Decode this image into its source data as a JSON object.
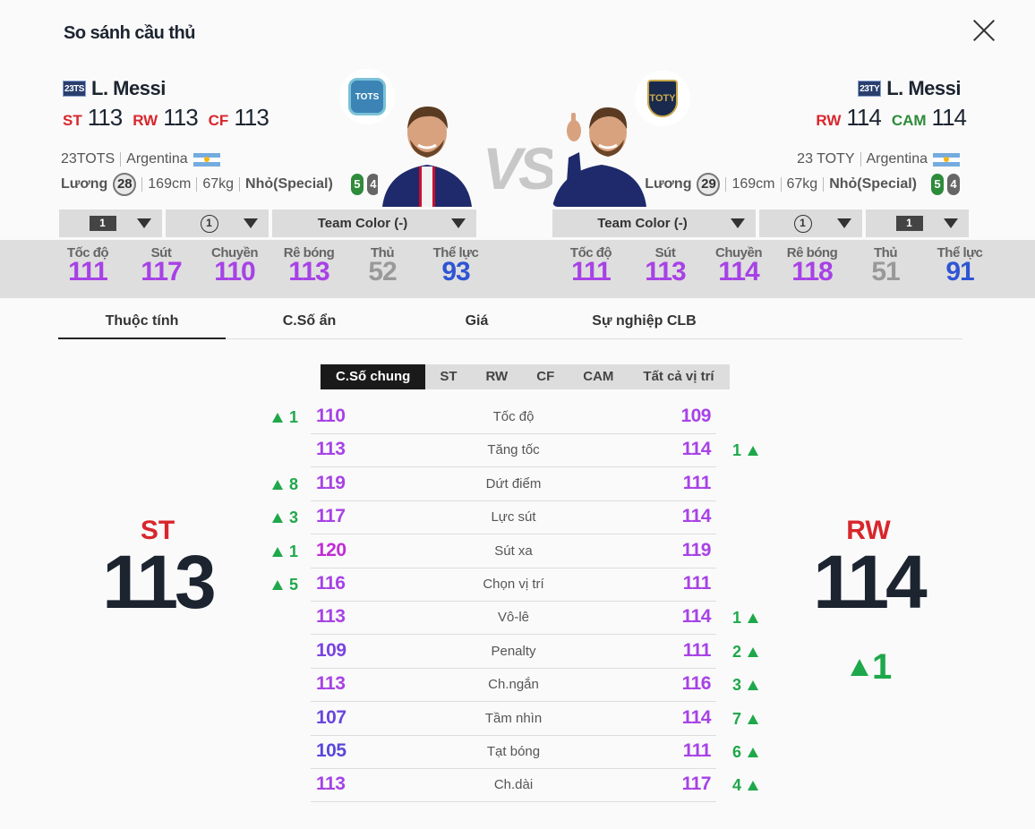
{
  "title": "So sánh cầu thủ",
  "vs_label": "VS",
  "left": {
    "season": "23TS",
    "name": "L. Messi",
    "positions": [
      {
        "pos": "ST",
        "value": "113",
        "color": "#d8262c"
      },
      {
        "pos": "RW",
        "value": "113",
        "color": "#d8262c"
      },
      {
        "pos": "CF",
        "value": "113",
        "color": "#d8262c"
      }
    ],
    "season_full": "23TOTS",
    "country": "Argentina",
    "wage_label": "Lương",
    "wage": "28",
    "height": "169cm",
    "weight": "67kg",
    "body": "Nhỏ(Special)",
    "foot_strong": "5",
    "foot_weak": "4",
    "badge": "TOTS",
    "dropdowns": [
      "1",
      "1",
      "Team Color (-)"
    ],
    "stats": [
      {
        "label": "Tốc độ",
        "value": "111",
        "style": "purple"
      },
      {
        "label": "Sút",
        "value": "117",
        "style": "purple"
      },
      {
        "label": "Chuyền",
        "value": "110",
        "style": "purple"
      },
      {
        "label": "Rê bóng",
        "value": "113",
        "style": "purple"
      },
      {
        "label": "Thủ",
        "value": "52",
        "style": "grey"
      },
      {
        "label": "Thể lực",
        "value": "93",
        "style": "blue"
      }
    ],
    "main_pos": "ST",
    "main_val": "113"
  },
  "right": {
    "season": "23TY",
    "name": "L. Messi",
    "positions": [
      {
        "pos": "RW",
        "value": "114",
        "color": "#d8262c"
      },
      {
        "pos": "CAM",
        "value": "114",
        "color": "#2e8b3a"
      }
    ],
    "season_full": "23 TOTY",
    "country": "Argentina",
    "wage_label": "Lương",
    "wage": "29",
    "height": "169cm",
    "weight": "67kg",
    "body": "Nhỏ(Special)",
    "foot_strong": "5",
    "foot_weak": "4",
    "badge": "TOTY",
    "dropdowns": [
      "Team Color (-)",
      "1",
      "1"
    ],
    "stats": [
      {
        "label": "Tốc độ",
        "value": "111",
        "style": "purple"
      },
      {
        "label": "Sút",
        "value": "113",
        "style": "purple"
      },
      {
        "label": "Chuyền",
        "value": "114",
        "style": "purple"
      },
      {
        "label": "Rê bóng",
        "value": "118",
        "style": "purple"
      },
      {
        "label": "Thủ",
        "value": "51",
        "style": "grey"
      },
      {
        "label": "Thể lực",
        "value": "91",
        "style": "blue"
      }
    ],
    "main_pos": "RW",
    "main_val": "114",
    "main_diff": "1"
  },
  "tabs": [
    "Thuộc tính",
    "C.Số ẩn",
    "Giá",
    "Sự nghiệp CLB"
  ],
  "subtabs": [
    "C.Số chung",
    "ST",
    "RW",
    "CF",
    "CAM",
    "Tất cả vị trí"
  ],
  "attributes": [
    {
      "name": "Tốc độ",
      "left": "110",
      "right": "109",
      "lc": "#a742e6",
      "rc": "#a742e6",
      "ldiff": "1",
      "rdiff": ""
    },
    {
      "name": "Tăng tốc",
      "left": "113",
      "right": "114",
      "lc": "#a742e6",
      "rc": "#a742e6",
      "ldiff": "",
      "rdiff": "1"
    },
    {
      "name": "Dứt điểm",
      "left": "119",
      "right": "111",
      "lc": "#a742e6",
      "rc": "#a742e6",
      "ldiff": "8",
      "rdiff": ""
    },
    {
      "name": "Lực sút",
      "left": "117",
      "right": "114",
      "lc": "#a742e6",
      "rc": "#a742e6",
      "ldiff": "3",
      "rdiff": ""
    },
    {
      "name": "Sút xa",
      "left": "120",
      "right": "119",
      "lc": "#c12bd6",
      "rc": "#a742e6",
      "ldiff": "1",
      "rdiff": ""
    },
    {
      "name": "Chọn vị trí",
      "left": "116",
      "right": "111",
      "lc": "#a742e6",
      "rc": "#a742e6",
      "ldiff": "5",
      "rdiff": ""
    },
    {
      "name": "Vô-lê",
      "left": "113",
      "right": "114",
      "lc": "#a742e6",
      "rc": "#a742e6",
      "ldiff": "",
      "rdiff": "1"
    },
    {
      "name": "Penalty",
      "left": "109",
      "right": "111",
      "lc": "#7a44e0",
      "rc": "#a742e6",
      "ldiff": "",
      "rdiff": "2"
    },
    {
      "name": "Ch.ngắn",
      "left": "113",
      "right": "116",
      "lc": "#a742e6",
      "rc": "#a742e6",
      "ldiff": "",
      "rdiff": "3"
    },
    {
      "name": "Tầm nhìn",
      "left": "107",
      "right": "114",
      "lc": "#6a46dd",
      "rc": "#a742e6",
      "ldiff": "",
      "rdiff": "7"
    },
    {
      "name": "Tạt bóng",
      "left": "105",
      "right": "111",
      "lc": "#5a48da",
      "rc": "#a742e6",
      "ldiff": "",
      "rdiff": "6"
    },
    {
      "name": "Ch.dài",
      "left": "113",
      "right": "117",
      "lc": "#a742e6",
      "rc": "#a742e6",
      "ldiff": "",
      "rdiff": "4"
    }
  ]
}
